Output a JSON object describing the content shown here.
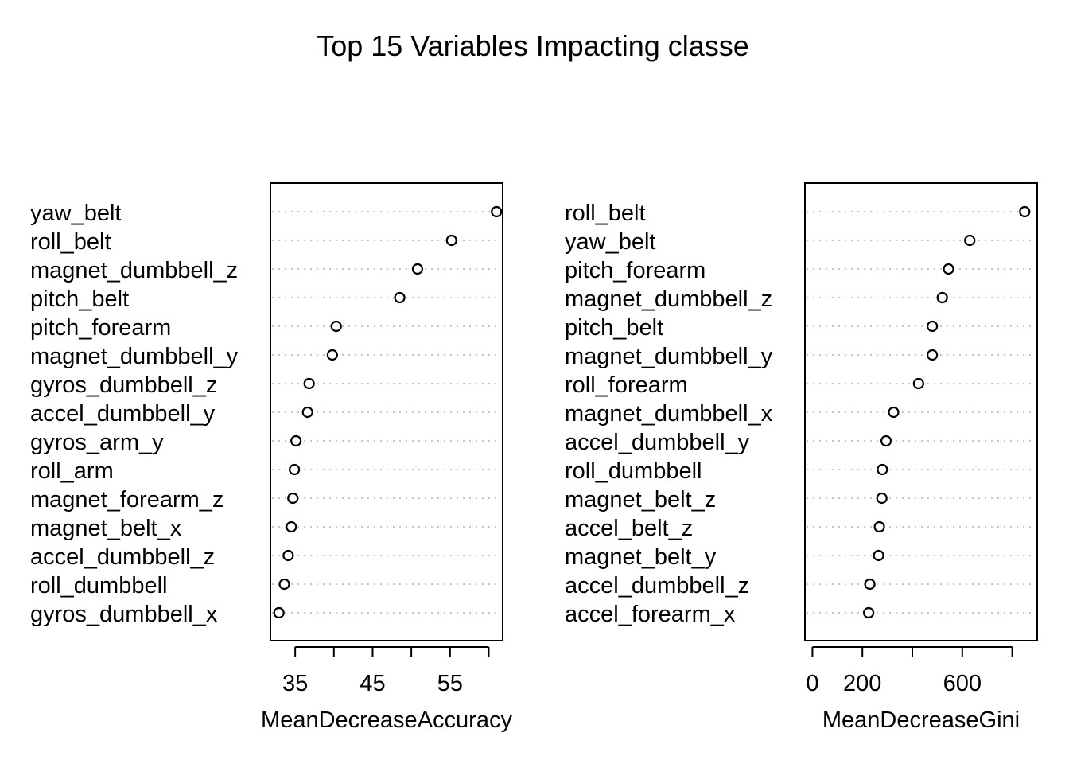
{
  "title": "Top 15 Variables Impacting classe",
  "chart_data": [
    {
      "type": "scatter",
      "subtype": "dotchart",
      "xlabel": "MeanDecreaseAccuracy",
      "xlim": [
        31.8,
        61.8
      ],
      "xticks": [
        35,
        40,
        45,
        50,
        55,
        60
      ],
      "xtick_labels": [
        "35",
        "",
        "45",
        "",
        "55",
        ""
      ],
      "categories": [
        "yaw_belt",
        "roll_belt",
        "magnet_dumbbell_z",
        "pitch_belt",
        "pitch_forearm",
        "magnet_dumbbell_y",
        "gyros_dumbbell_z",
        "accel_dumbbell_y",
        "gyros_arm_y",
        "roll_arm",
        "magnet_forearm_z",
        "magnet_belt_x",
        "accel_dumbbell_z",
        "roll_dumbbell",
        "gyros_dumbbell_x"
      ],
      "values": [
        61.0,
        55.2,
        50.8,
        48.5,
        40.3,
        39.8,
        36.8,
        36.6,
        35.1,
        34.9,
        34.7,
        34.5,
        34.1,
        33.6,
        32.9
      ]
    },
    {
      "type": "scatter",
      "subtype": "dotchart",
      "xlabel": "MeanDecreaseGini",
      "xlim": [
        -30,
        900
      ],
      "xticks": [
        0,
        200,
        400,
        600,
        800
      ],
      "xtick_labels": [
        "0",
        "200",
        "",
        "600",
        ""
      ],
      "categories": [
        "roll_belt",
        "yaw_belt",
        "pitch_forearm",
        "magnet_dumbbell_z",
        "pitch_belt",
        "magnet_dumbbell_y",
        "roll_forearm",
        "magnet_dumbbell_x",
        "accel_dumbbell_y",
        "roll_dumbbell",
        "magnet_belt_z",
        "accel_belt_z",
        "magnet_belt_y",
        "accel_dumbbell_z",
        "accel_forearm_x"
      ],
      "values": [
        850,
        630,
        545,
        520,
        480,
        480,
        425,
        325,
        295,
        280,
        278,
        268,
        265,
        230,
        225
      ]
    }
  ]
}
